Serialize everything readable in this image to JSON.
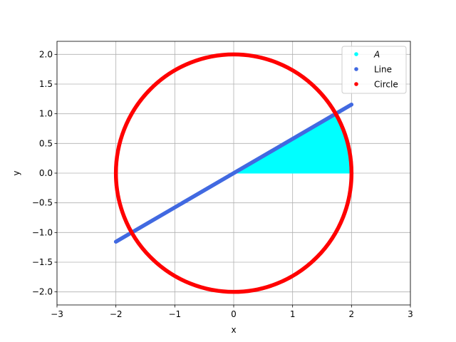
{
  "chart_data": {
    "type": "scatter",
    "title": "",
    "xlabel": "x",
    "ylabel": "y",
    "xlim": [
      -3,
      3
    ],
    "ylim": [
      -2.22,
      2.22
    ],
    "xticks": [
      -3,
      -2,
      -1,
      0,
      1,
      2,
      3
    ],
    "xtick_labels": [
      "−3",
      "−2",
      "−1",
      "0",
      "1",
      "2",
      "3"
    ],
    "yticks": [
      -2.0,
      -1.5,
      -1.0,
      -0.5,
      0.0,
      0.5,
      1.0,
      1.5,
      2.0
    ],
    "ytick_labels": [
      "−2.0",
      "−1.5",
      "−1.0",
      "−0.5",
      "0.0",
      "0.5",
      "1.0",
      "1.5",
      "2.0"
    ],
    "grid": true,
    "legend_position": "top-right",
    "series": [
      {
        "name": "A",
        "label_italic": true,
        "kind": "filled-sector",
        "color": "#00ffff",
        "radius": 2,
        "angle_from_deg": 0,
        "angle_to_deg": 30
      },
      {
        "name": "Line",
        "kind": "line-points",
        "color": "#4169e1",
        "x": [
          -2,
          2
        ],
        "y": [
          -1.155,
          1.155
        ]
      },
      {
        "name": "Circle",
        "kind": "circle-points",
        "color": "#ff0000",
        "center": [
          0,
          0
        ],
        "radius": 2
      }
    ]
  }
}
